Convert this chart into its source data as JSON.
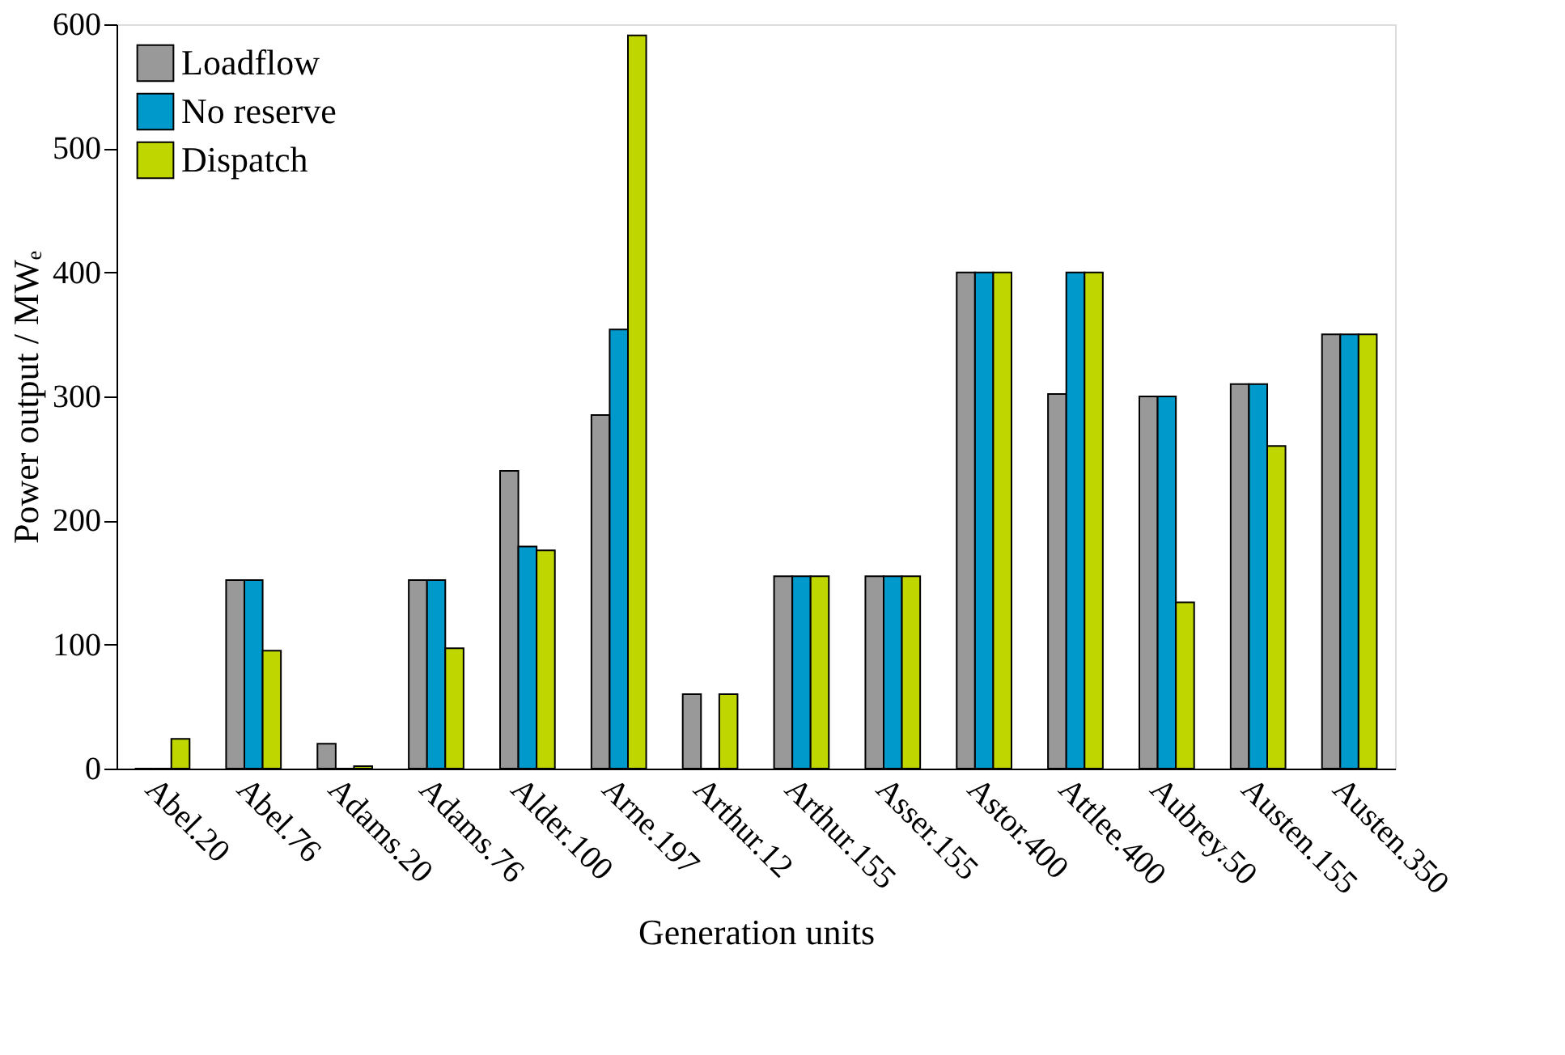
{
  "chart_data": {
    "type": "bar",
    "xlabel": "Generation units",
    "ylabel": "Power output / MWₑ",
    "categories": [
      "Abel.20",
      "Abel.76",
      "Adams.20",
      "Adams.76",
      "Alder.100",
      "Arne.197",
      "Arthur.12",
      "Arthur.155",
      "Asser.155",
      "Astor.400",
      "Attlee.400",
      "Aubrey.50",
      "Austen.155",
      "Austen.350"
    ],
    "series": [
      {
        "name": "Loadflow",
        "color": "#999999",
        "values": [
          0,
          152,
          20,
          152,
          240,
          285,
          60,
          155,
          155,
          400,
          302,
          300,
          310,
          350
        ]
      },
      {
        "name": "No reserve",
        "color": "#0099cc",
        "values": [
          0,
          152,
          0,
          152,
          179,
          354,
          0,
          155,
          155,
          400,
          400,
          300,
          310,
          350
        ]
      },
      {
        "name": "Dispatch",
        "color": "#c0d600",
        "values": [
          24,
          95,
          2,
          97,
          176,
          591,
          60,
          155,
          155,
          400,
          400,
          134,
          260,
          350
        ]
      }
    ],
    "ylim": [
      0,
      600
    ],
    "yticks": [
      0,
      100,
      200,
      300,
      400,
      500,
      600
    ],
    "grid": false,
    "legend": "top left"
  }
}
